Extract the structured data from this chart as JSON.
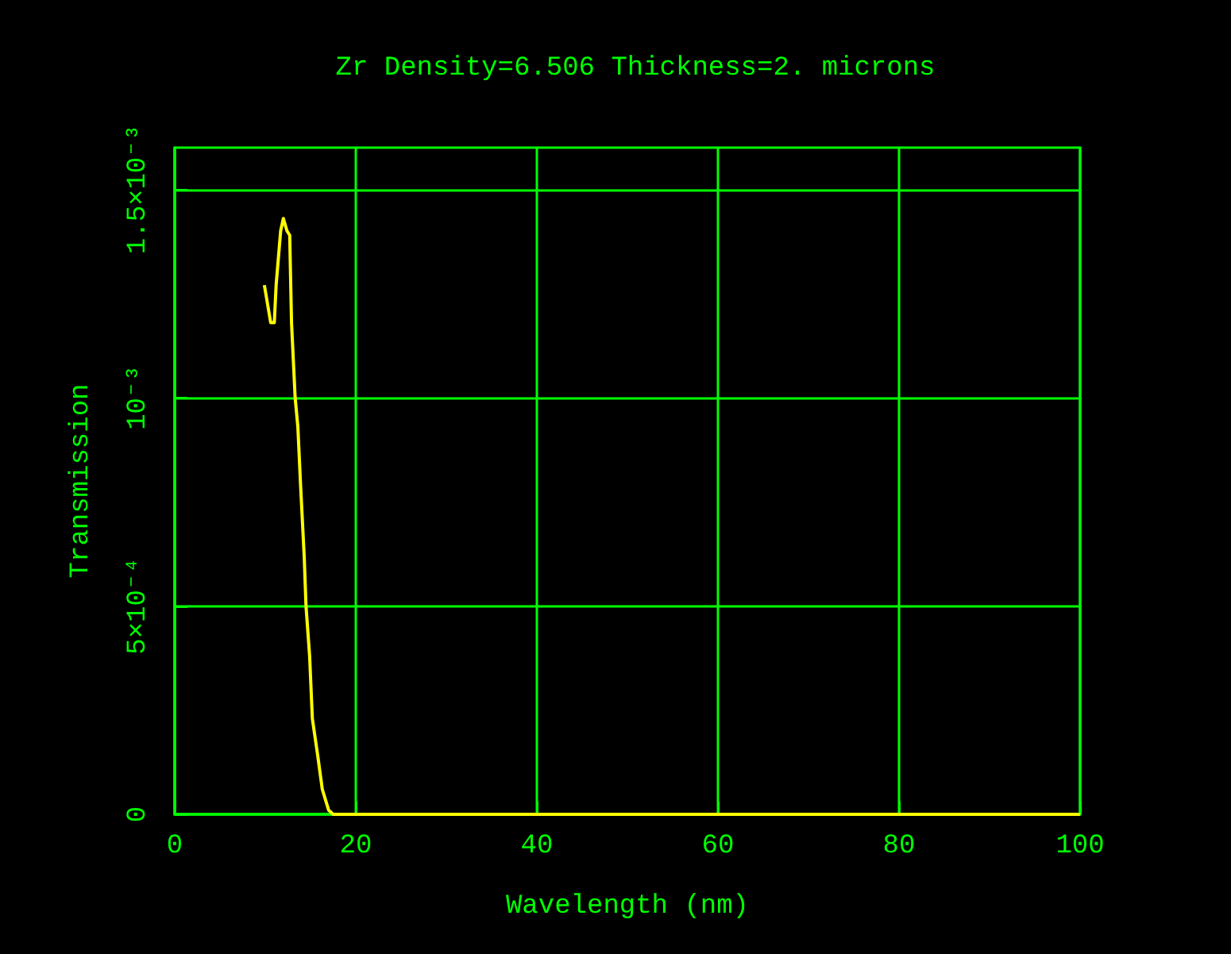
{
  "chart_data": {
    "type": "line",
    "title": "Zr Density=6.506 Thickness=2. microns",
    "xlabel": "Wavelength (nm)",
    "ylabel": "Transmission",
    "x": [
      9.9,
      10.6,
      11.0,
      11.2,
      11.7,
      12.0,
      12.4,
      12.7,
      12.9,
      13.3,
      13.6,
      13.9,
      14.3,
      14.5,
      14.9,
      15.2,
      15.8,
      16.3,
      17.0,
      17.5,
      20,
      40,
      60,
      80,
      100
    ],
    "series": [
      {
        "color": "#ffff00",
        "values": [
          0.00127,
          0.00118,
          0.00118,
          0.00127,
          0.0014,
          0.00143,
          0.0014,
          0.00139,
          0.00118,
          0.001,
          0.00093,
          0.00079,
          0.00062,
          0.0005,
          0.00038,
          0.00023,
          0.00014,
          6e-05,
          1e-05,
          0,
          0,
          0,
          0,
          0,
          0
        ]
      }
    ],
    "xlim": [
      0,
      100
    ],
    "xticks": [
      0,
      20,
      40,
      60,
      80,
      100
    ],
    "ylim": [
      0,
      0.0016
    ],
    "yticks": [
      0,
      {
        "value": 0.0005,
        "label": "5×10⁻⁴"
      },
      {
        "value": 0.001,
        "label": "10⁻³"
      },
      {
        "value": 0.0015,
        "label": "1.5×10⁻³"
      }
    ],
    "grid": true,
    "line_style": "solid",
    "marker": "none"
  }
}
